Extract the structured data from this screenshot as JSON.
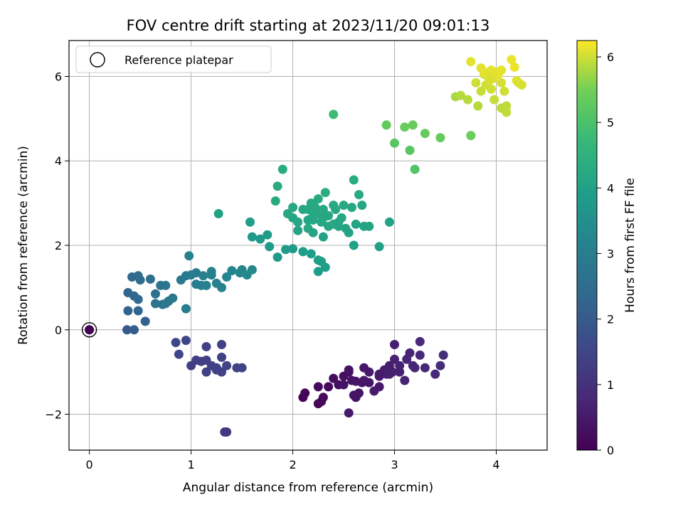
{
  "chart_data": {
    "type": "scatter",
    "title": "FOV centre drift starting at 2023/11/20 09:01:13",
    "xlabel": "Angular distance from reference (arcmin)",
    "ylabel": "Rotation from reference (arcmin)",
    "xlim": [
      -0.2,
      4.5
    ],
    "ylim": [
      -2.85,
      6.85
    ],
    "x_ticks": [
      0,
      1,
      2,
      3,
      4
    ],
    "x_tick_labels": [
      "0",
      "1",
      "2",
      "3",
      "4"
    ],
    "y_ticks": [
      -2,
      0,
      2,
      4,
      6
    ],
    "y_tick_labels": [
      "−2",
      "0",
      "2",
      "4",
      "6"
    ],
    "grid": true,
    "colormap": "viridis",
    "colorbar": {
      "label": "Hours from first FF file",
      "range": [
        0,
        6.25
      ],
      "ticks": [
        0,
        1,
        2,
        3,
        4,
        5,
        6
      ],
      "tick_labels": [
        "0",
        "1",
        "2",
        "3",
        "4",
        "5",
        "6"
      ]
    },
    "legend": {
      "position": "upper-left",
      "entries": [
        {
          "label": "Reference platepar",
          "marker": "hollow-circle"
        }
      ]
    },
    "reference_point": {
      "x": 0,
      "y": 0,
      "hours": 0
    },
    "points": [
      [
        2.1,
        -1.6,
        0.05
      ],
      [
        2.12,
        -1.5,
        0.1
      ],
      [
        2.25,
        -1.75,
        0.12
      ],
      [
        2.3,
        -1.6,
        0.15
      ],
      [
        2.35,
        -1.35,
        0.2
      ],
      [
        2.25,
        -1.35,
        0.22
      ],
      [
        2.4,
        -1.15,
        0.25
      ],
      [
        2.45,
        -1.3,
        0.28
      ],
      [
        2.5,
        -1.1,
        0.3
      ],
      [
        2.55,
        -1.0,
        0.32
      ],
      [
        2.58,
        -1.2,
        0.35
      ],
      [
        2.62,
        -1.6,
        0.38
      ],
      [
        2.65,
        -1.5,
        0.4
      ],
      [
        2.68,
        -1.25,
        0.42
      ],
      [
        2.7,
        -1.2,
        0.45
      ],
      [
        2.75,
        -1.0,
        0.48
      ],
      [
        2.8,
        -1.45,
        0.5
      ],
      [
        2.85,
        -1.1,
        0.52
      ],
      [
        2.9,
        -0.95,
        0.55
      ],
      [
        2.92,
        -1.05,
        0.58
      ],
      [
        2.95,
        -0.85,
        0.6
      ],
      [
        2.98,
        -1.0,
        0.62
      ],
      [
        3.0,
        -0.7,
        0.65
      ],
      [
        3.05,
        -0.85,
        0.68
      ],
      [
        3.1,
        -1.2,
        0.7
      ],
      [
        3.12,
        -0.7,
        0.72
      ],
      [
        3.15,
        -0.55,
        0.75
      ],
      [
        3.2,
        -0.9,
        0.78
      ],
      [
        3.25,
        -0.6,
        0.8
      ],
      [
        3.25,
        -0.28,
        0.82
      ],
      [
        3.4,
        -1.05,
        0.85
      ],
      [
        3.45,
        -0.85,
        0.88
      ],
      [
        3.48,
        -0.6,
        0.9
      ],
      [
        3.0,
        -0.35,
        0.6
      ],
      [
        2.55,
        -1.97,
        0.5
      ],
      [
        2.6,
        -1.55,
        0.4
      ],
      [
        2.75,
        -1.25,
        0.45
      ],
      [
        2.85,
        -1.35,
        0.5
      ],
      [
        3.05,
        -1.0,
        0.65
      ],
      [
        2.95,
        -1.05,
        0.6
      ],
      [
        2.62,
        -1.22,
        0.4
      ],
      [
        2.5,
        -1.3,
        0.35
      ],
      [
        2.85,
        -1.05,
        0.5
      ],
      [
        2.55,
        -0.95,
        0.35
      ],
      [
        3.18,
        -0.85,
        0.75
      ],
      [
        3.3,
        -0.9,
        0.8
      ],
      [
        2.7,
        -0.9,
        0.45
      ],
      [
        2.28,
        -1.7,
        0.15
      ],
      [
        1.35,
        -2.42,
        1.15
      ],
      [
        1.33,
        -2.42,
        1.15
      ],
      [
        1.0,
        -0.85,
        1.3
      ],
      [
        1.05,
        -0.72,
        1.3
      ],
      [
        1.1,
        -0.75,
        1.35
      ],
      [
        1.15,
        -0.72,
        1.35
      ],
      [
        1.15,
        -1.0,
        1.35
      ],
      [
        1.2,
        -0.85,
        1.38
      ],
      [
        1.25,
        -0.9,
        1.4
      ],
      [
        1.3,
        -0.65,
        1.4
      ],
      [
        1.3,
        -1.0,
        1.4
      ],
      [
        1.35,
        -0.85,
        1.42
      ],
      [
        1.45,
        -0.9,
        1.45
      ],
      [
        1.5,
        -0.9,
        1.45
      ],
      [
        1.15,
        -0.4,
        1.35
      ],
      [
        1.3,
        -0.35,
        1.4
      ],
      [
        0.95,
        -0.25,
        1.5
      ],
      [
        0.85,
        -0.3,
        1.55
      ],
      [
        0.88,
        -0.58,
        1.5
      ],
      [
        1.25,
        -0.95,
        1.4
      ],
      [
        0.37,
        0.0,
        2.0
      ],
      [
        0.44,
        0.0,
        2.1
      ],
      [
        0.55,
        0.2,
        2.2
      ],
      [
        0.38,
        0.45,
        2.25
      ],
      [
        0.48,
        0.45,
        2.3
      ],
      [
        0.38,
        0.88,
        2.3
      ],
      [
        0.44,
        0.8,
        2.35
      ],
      [
        0.48,
        0.72,
        2.4
      ],
      [
        0.42,
        1.25,
        2.4
      ],
      [
        0.48,
        1.28,
        2.45
      ],
      [
        0.5,
        1.18,
        2.5
      ],
      [
        0.6,
        1.2,
        2.55
      ],
      [
        0.65,
        0.85,
        2.6
      ],
      [
        0.65,
        0.62,
        2.65
      ],
      [
        0.7,
        1.05,
        2.7
      ],
      [
        0.72,
        0.6,
        2.7
      ],
      [
        0.75,
        1.05,
        2.75
      ],
      [
        0.78,
        0.68,
        2.75
      ],
      [
        0.82,
        0.75,
        2.8
      ],
      [
        0.75,
        0.62,
        2.8
      ],
      [
        0.95,
        1.28,
        2.85
      ],
      [
        0.9,
        1.18,
        2.85
      ],
      [
        0.95,
        0.5,
        2.9
      ],
      [
        1.0,
        1.3,
        2.9
      ],
      [
        1.05,
        1.35,
        2.95
      ],
      [
        1.05,
        1.08,
        3.0
      ],
      [
        1.1,
        1.05,
        3.0
      ],
      [
        1.12,
        1.28,
        3.05
      ],
      [
        1.15,
        1.05,
        3.05
      ],
      [
        1.2,
        1.3,
        3.1
      ],
      [
        1.2,
        1.38,
        3.1
      ],
      [
        1.25,
        1.1,
        3.1
      ],
      [
        1.3,
        1.0,
        3.15
      ],
      [
        0.98,
        1.75,
        3.15
      ],
      [
        1.35,
        1.25,
        3.2
      ],
      [
        1.4,
        1.4,
        3.2
      ],
      [
        1.48,
        1.35,
        3.25
      ],
      [
        1.5,
        1.42,
        3.25
      ],
      [
        1.55,
        1.3,
        3.3
      ],
      [
        1.6,
        1.42,
        3.3
      ],
      [
        1.27,
        2.75,
        4.0
      ],
      [
        1.58,
        2.55,
        3.9
      ],
      [
        1.6,
        2.2,
        3.8
      ],
      [
        1.68,
        2.15,
        3.8
      ],
      [
        1.75,
        2.25,
        3.85
      ],
      [
        1.77,
        1.97,
        3.8
      ],
      [
        1.85,
        1.72,
        3.8
      ],
      [
        1.93,
        1.9,
        3.85
      ],
      [
        2.0,
        1.92,
        3.85
      ],
      [
        2.1,
        1.85,
        3.9
      ],
      [
        2.18,
        1.8,
        3.9
      ],
      [
        2.25,
        1.65,
        3.9
      ],
      [
        2.28,
        1.62,
        3.9
      ],
      [
        2.25,
        1.38,
        3.9
      ],
      [
        2.32,
        1.48,
        3.95
      ],
      [
        1.9,
        3.8,
        4.3
      ],
      [
        1.85,
        3.4,
        4.3
      ],
      [
        1.83,
        3.05,
        4.25
      ],
      [
        1.95,
        2.75,
        4.2
      ],
      [
        2.0,
        2.9,
        4.2
      ],
      [
        2.05,
        2.55,
        4.15
      ],
      [
        2.1,
        2.85,
        4.2
      ],
      [
        2.15,
        2.4,
        4.2
      ],
      [
        2.18,
        3.0,
        4.25
      ],
      [
        2.2,
        2.6,
        4.2
      ],
      [
        2.22,
        2.9,
        4.25
      ],
      [
        2.25,
        2.75,
        4.2
      ],
      [
        2.28,
        2.55,
        4.15
      ],
      [
        2.3,
        2.85,
        4.2
      ],
      [
        2.32,
        3.25,
        4.3
      ],
      [
        2.35,
        2.7,
        4.2
      ],
      [
        2.4,
        2.5,
        4.15
      ],
      [
        2.42,
        2.85,
        4.2
      ],
      [
        2.45,
        2.55,
        4.15
      ],
      [
        2.48,
        2.65,
        4.2
      ],
      [
        2.5,
        2.95,
        4.25
      ],
      [
        2.52,
        2.4,
        4.1
      ],
      [
        2.55,
        2.3,
        4.1
      ],
      [
        2.58,
        2.9,
        4.2
      ],
      [
        2.6,
        3.55,
        4.35
      ],
      [
        2.62,
        2.5,
        4.1
      ],
      [
        2.65,
        3.2,
        4.25
      ],
      [
        2.68,
        2.95,
        4.2
      ],
      [
        2.7,
        2.45,
        4.1
      ],
      [
        2.75,
        2.45,
        4.1
      ],
      [
        2.6,
        2.0,
        4.0
      ],
      [
        2.85,
        1.97,
        4.0
      ],
      [
        2.95,
        2.55,
        4.05
      ],
      [
        2.2,
        2.3,
        4.1
      ],
      [
        2.3,
        2.2,
        4.05
      ],
      [
        2.15,
        2.85,
        4.2
      ],
      [
        2.05,
        2.35,
        4.1
      ],
      [
        2.25,
        3.1,
        4.25
      ],
      [
        2.4,
        2.95,
        4.25
      ],
      [
        2.35,
        2.45,
        4.15
      ],
      [
        2.2,
        2.7,
        4.2
      ],
      [
        2.3,
        2.65,
        4.2
      ],
      [
        2.45,
        2.45,
        4.15
      ],
      [
        2.0,
        2.65,
        4.15
      ],
      [
        2.15,
        2.6,
        4.15
      ],
      [
        2.4,
        5.1,
        4.8
      ],
      [
        2.92,
        4.85,
        5.3
      ],
      [
        3.0,
        4.42,
        5.2
      ],
      [
        3.1,
        4.8,
        5.35
      ],
      [
        3.15,
        4.25,
        5.2
      ],
      [
        3.18,
        4.85,
        5.35
      ],
      [
        3.2,
        3.8,
        5.1
      ],
      [
        3.3,
        4.65,
        5.35
      ],
      [
        3.45,
        4.55,
        5.35
      ],
      [
        3.6,
        5.52,
        5.8
      ],
      [
        3.65,
        5.55,
        5.85
      ],
      [
        3.72,
        5.45,
        5.85
      ],
      [
        3.75,
        4.6,
        5.4
      ],
      [
        3.75,
        6.35,
        6.1
      ],
      [
        3.8,
        5.85,
        6.0
      ],
      [
        3.82,
        5.3,
        5.85
      ],
      [
        3.85,
        6.2,
        6.1
      ],
      [
        3.85,
        5.65,
        5.95
      ],
      [
        3.88,
        6.05,
        6.05
      ],
      [
        3.9,
        5.8,
        6.0
      ],
      [
        3.92,
        6.0,
        6.05
      ],
      [
        3.93,
        5.9,
        6.05
      ],
      [
        3.95,
        6.15,
        6.1
      ],
      [
        3.97,
        5.95,
        6.05
      ],
      [
        3.98,
        5.45,
        5.95
      ],
      [
        4.0,
        6.1,
        6.1
      ],
      [
        4.02,
        6.05,
        6.1
      ],
      [
        4.05,
        5.85,
        6.05
      ],
      [
        4.05,
        5.25,
        5.9
      ],
      [
        4.08,
        5.65,
        6.0
      ],
      [
        4.1,
        5.3,
        5.9
      ],
      [
        4.1,
        5.15,
        5.9
      ],
      [
        4.15,
        6.4,
        6.15
      ],
      [
        4.18,
        6.22,
        6.15
      ],
      [
        4.2,
        5.9,
        6.1
      ],
      [
        4.22,
        5.85,
        6.05
      ],
      [
        4.25,
        5.8,
        6.05
      ],
      [
        3.95,
        5.7,
        6.0
      ],
      [
        3.88,
        6.1,
        6.1
      ],
      [
        4.05,
        6.15,
        6.1
      ]
    ]
  }
}
